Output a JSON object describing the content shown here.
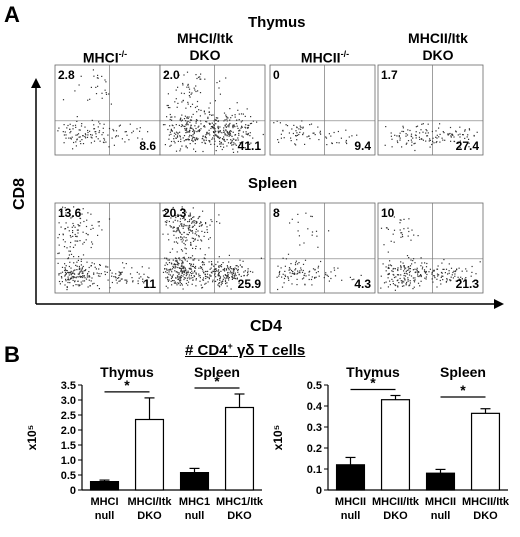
{
  "panel_a": {
    "label": "A",
    "thymus_title": "Thymus",
    "spleen_title": "Spleen",
    "columns": [
      "MHCI-/-",
      "MHCI/Itk DKO",
      "MHCII-/-",
      "MHCII/Itk DKO"
    ],
    "x_axis_label": "CD4",
    "y_axis_label": "CD8"
  },
  "panel_b": {
    "label": "B",
    "title": "# CD4+ γδ T cells"
  },
  "chart_data": [
    {
      "type": "scatter",
      "title": "Thymus",
      "xlabel": "CD4",
      "ylabel": "CD8",
      "panels": [
        {
          "name": "MHCI-/-",
          "quadrant_values": {
            "upper_left": "2.8",
            "lower_right": "8.6"
          }
        },
        {
          "name": "MHCI/Itk DKO",
          "quadrant_values": {
            "upper_left": "2.0",
            "lower_right": "41.1"
          }
        },
        {
          "name": "MHCII-/-",
          "quadrant_values": {
            "upper_left": "0",
            "lower_right": "9.4"
          }
        },
        {
          "name": "MHCII/Itk DKO",
          "quadrant_values": {
            "upper_left": "1.7",
            "lower_right": "27.4"
          }
        }
      ]
    },
    {
      "type": "scatter",
      "title": "Spleen",
      "xlabel": "CD4",
      "ylabel": "CD8",
      "panels": [
        {
          "name": "MHCI-/-",
          "quadrant_values": {
            "upper_left": "13.6",
            "lower_right": "11"
          }
        },
        {
          "name": "MHCI/Itk DKO",
          "quadrant_values": {
            "upper_left": "20.3",
            "lower_right": "25.9"
          }
        },
        {
          "name": "MHCII-/-",
          "quadrant_values": {
            "upper_left": "8",
            "lower_right": "4.3"
          }
        },
        {
          "name": "MHCII/Itk DKO",
          "quadrant_values": {
            "upper_left": "10",
            "lower_right": "21.3"
          }
        }
      ]
    },
    {
      "type": "bar",
      "group_labels": [
        "Thymus",
        "Spleen"
      ],
      "categories": [
        "MHCI null",
        "MHCI/Itk DKO",
        "MHC1 null",
        "MHC1/Itk DKO"
      ],
      "values": [
        0.28,
        2.35,
        0.58,
        2.75
      ],
      "errors": [
        0.05,
        0.72,
        0.14,
        0.45
      ],
      "fills": [
        "#000000",
        "#ffffff",
        "#000000",
        "#ffffff"
      ],
      "ylabel": "x10⁵",
      "ylim": [
        0,
        3.5
      ],
      "yticks": [
        "0",
        "0.5",
        "1.0",
        "1.5",
        "2.0",
        "2.5",
        "3.0",
        "3.5"
      ],
      "significance": [
        "*",
        "*"
      ]
    },
    {
      "type": "bar",
      "group_labels": [
        "Thymus",
        "Spleen"
      ],
      "categories": [
        "MHCII null",
        "MHCII/Itk DKO",
        "MHCII null",
        "MHCII/Itk DKO"
      ],
      "values": [
        0.12,
        0.43,
        0.08,
        0.365
      ],
      "errors": [
        0.035,
        0.02,
        0.018,
        0.022
      ],
      "fills": [
        "#000000",
        "#ffffff",
        "#000000",
        "#ffffff"
      ],
      "ylabel": "x10⁵",
      "ylim": [
        0,
        0.5
      ],
      "yticks": [
        "0",
        "0.1",
        "0.2",
        "0.3",
        "0.4",
        "0.5"
      ],
      "significance": [
        "*",
        "*"
      ]
    }
  ]
}
